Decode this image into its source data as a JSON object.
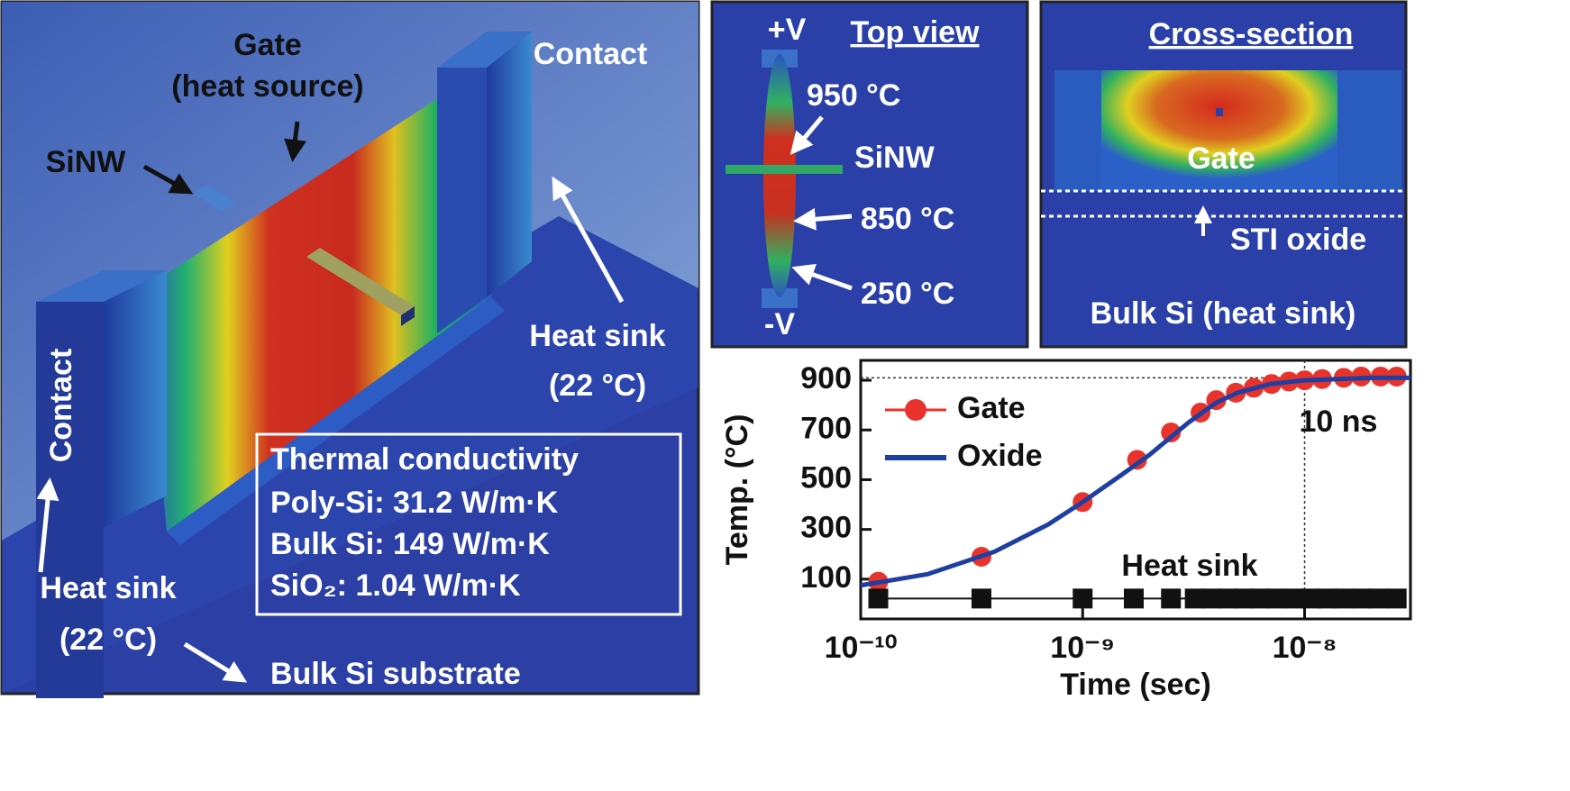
{
  "device_view": {
    "gate": "Gate",
    "gate_note": "(heat source)",
    "contact_top": "Contact",
    "contact_left": "Contact",
    "sinw": "SiNW",
    "heat_sink_right": "Heat sink",
    "heat_sink_right_temp": "(22 °C)",
    "heat_sink_left": "Heat sink",
    "heat_sink_left_temp": "(22 °C)",
    "substrate": "Bulk Si substrate",
    "conductivity": {
      "title": "Thermal conductivity",
      "rows": [
        "Poly-Si: 31.2 W/m·K",
        "Bulk Si: 149 W/m·K",
        "SiO₂: 1.04 W/m·K"
      ]
    }
  },
  "top_view": {
    "title": "Top view",
    "plus": "+V",
    "minus": "-V",
    "t1": "950 °C",
    "sinw": "SiNW",
    "t2": "850 °C",
    "t3": "250 °C"
  },
  "cross_section": {
    "title": "Cross-section",
    "gate": "Gate",
    "oxide": "STI oxide",
    "bulk": "Bulk Si (heat sink)"
  },
  "chart_data": {
    "type": "line",
    "x_label": "Time (sec)",
    "y_label": "Temp. (°C)",
    "x_log": true,
    "xlim": [
      1e-10,
      3e-08
    ],
    "ylim": [
      -60,
      980
    ],
    "xticks": [
      {
        "value": 1e-10,
        "label": "10⁻¹⁰"
      },
      {
        "value": 1e-09,
        "label": "10⁻⁹"
      },
      {
        "value": 1e-08,
        "label": "10⁻⁸"
      }
    ],
    "yticks": [
      100,
      300,
      500,
      700,
      900
    ],
    "vline": 1e-08,
    "hline": 910,
    "annotation": "10 ns",
    "series": [
      {
        "name": "Gate",
        "color": "#e8322c",
        "style": "markers",
        "legend": true,
        "x": [
          1.2e-10,
          3.5e-10,
          1e-09,
          1.76e-09,
          2.5e-09,
          3.4e-09,
          4e-09,
          4.9e-09,
          5.9e-09,
          7.1e-09,
          8.5e-09,
          1e-08,
          1.2e-08,
          1.5e-08,
          1.8e-08,
          2.2e-08,
          2.6e-08
        ],
        "values": [
          90,
          190,
          410,
          580,
          690,
          770,
          820,
          850,
          870,
          885,
          895,
          900,
          905,
          910,
          915,
          915,
          915
        ]
      },
      {
        "name": "Oxide",
        "color": "#1f3fa0",
        "style": "line",
        "legend": true,
        "x": [
          1e-10,
          2e-10,
          4e-10,
          7e-10,
          1e-09,
          1.5e-09,
          2e-09,
          3e-09,
          4e-09,
          5e-09,
          7e-09,
          1e-08,
          2e-08,
          3e-08
        ],
        "values": [
          75,
          120,
          210,
          320,
          410,
          520,
          600,
          730,
          810,
          850,
          885,
          900,
          910,
          910
        ]
      },
      {
        "name": "Heat sink",
        "color": "#111111",
        "style": "squares",
        "legend": false,
        "x": [
          1.2e-10,
          3.5e-10,
          1e-09,
          1.7e-09,
          2.5e-09,
          3.2e-09,
          3.8e-09,
          4.5e-09,
          5.3e-09,
          6.3e-09,
          7.5e-09,
          9e-09,
          1.07e-08,
          1.27e-08,
          1.5e-08,
          1.8e-08,
          2.15e-08,
          2.6e-08
        ],
        "values": [
          22,
          22,
          22,
          22,
          22,
          22,
          22,
          22,
          22,
          22,
          22,
          22,
          22,
          22,
          22,
          22,
          22,
          22
        ]
      }
    ]
  }
}
